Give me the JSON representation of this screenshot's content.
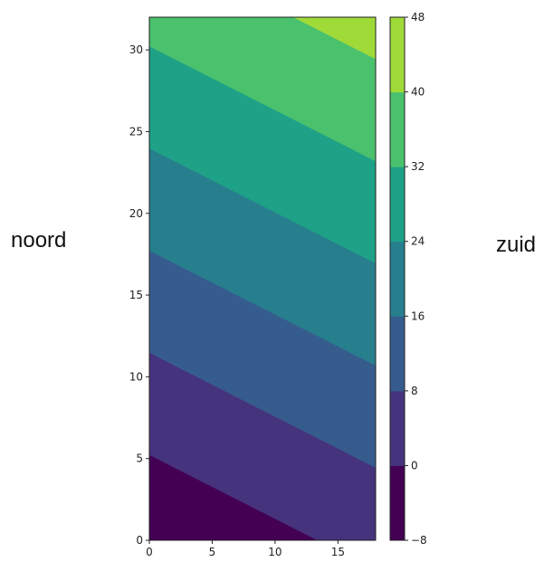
{
  "chart_data": {
    "type": "contourf",
    "x_range": [
      0,
      18
    ],
    "y_range": [
      0,
      32
    ],
    "x_ticks": [
      "0",
      "5",
      "10",
      "15"
    ],
    "y_ticks": [
      "0",
      "5",
      "10",
      "15",
      "20",
      "25",
      "30"
    ],
    "field": {
      "description_levels_only": true,
      "at_x0_y0": -6.7,
      "dvalue_dx": 0.5,
      "dvalue_dy": 1.28
    },
    "levels": [
      -8,
      0,
      8,
      16,
      24,
      32,
      40,
      48
    ],
    "level_colors": [
      "#440154",
      "#46337e",
      "#365c8d",
      "#277f8e",
      "#1fa187",
      "#4ac16d",
      "#a0da39",
      "#fde725"
    ],
    "colorbar_ticks": [
      "48",
      "40",
      "32",
      "24",
      "16",
      "8",
      "0",
      "−8"
    ]
  },
  "labels": {
    "left": "noord",
    "right": "zuid"
  }
}
